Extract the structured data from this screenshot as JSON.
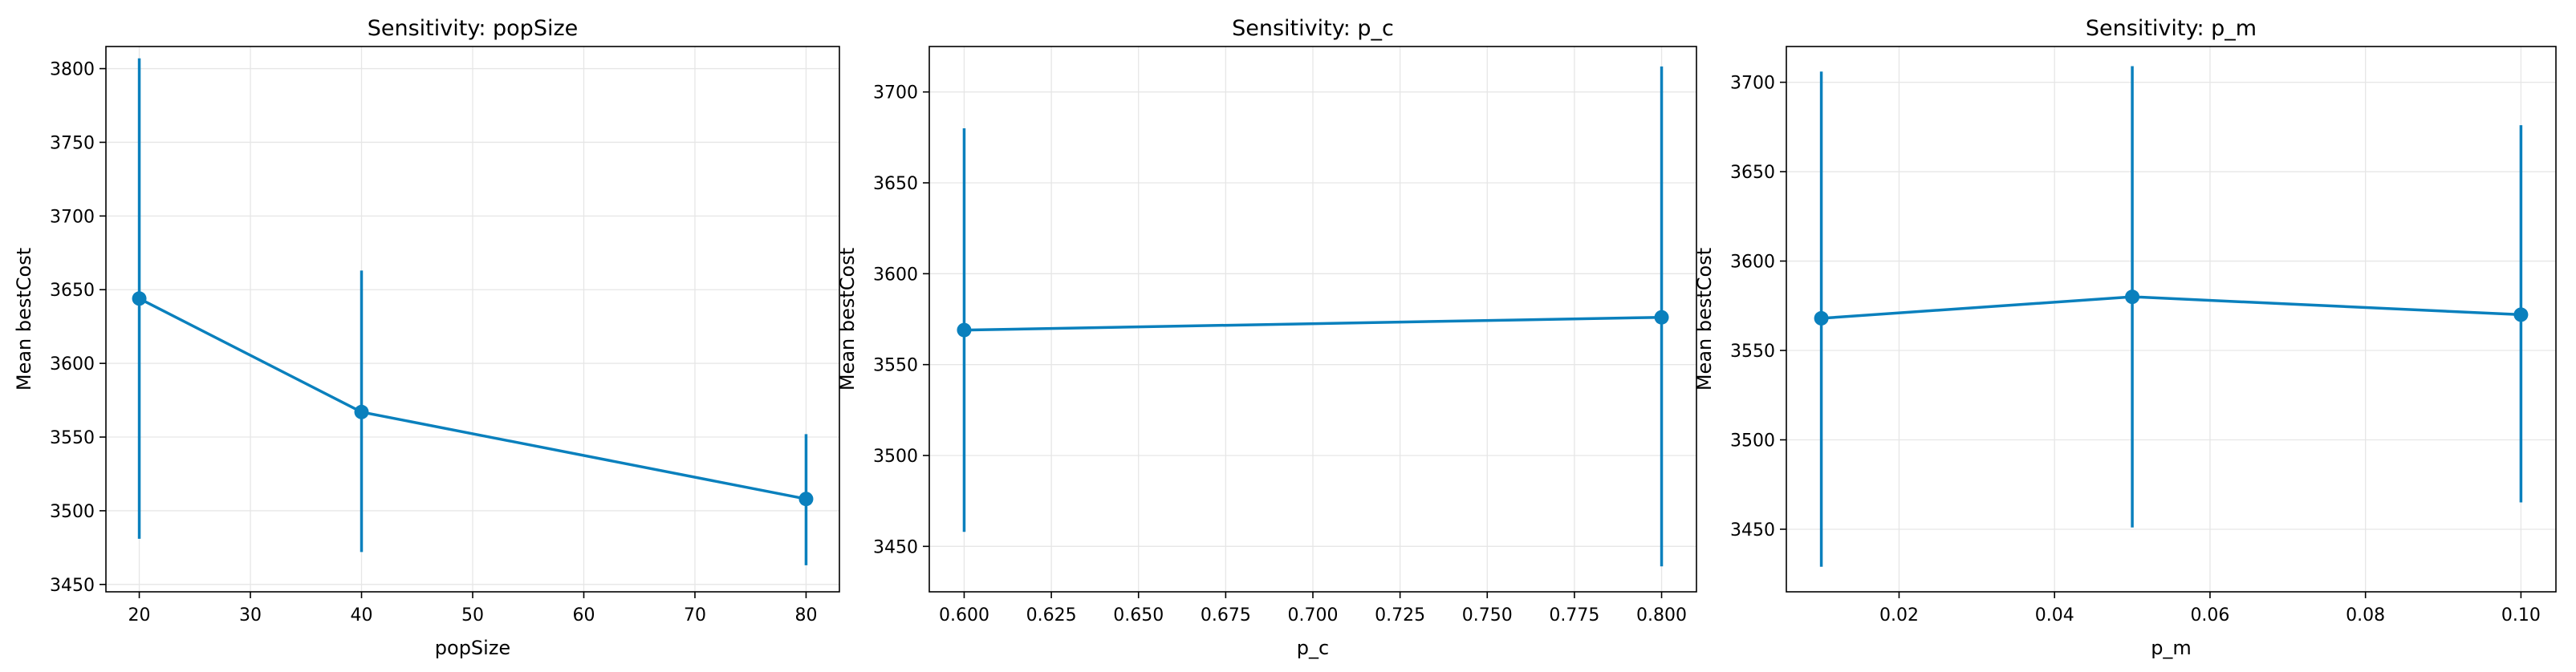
{
  "colors": {
    "series": "#0a80bd",
    "grid": "#e6e6e6"
  },
  "chart_data": [
    {
      "type": "line",
      "title": "Sensitivity: popSize",
      "xlabel": "popSize",
      "ylabel": "Mean bestCost",
      "xlim": [
        17,
        83
      ],
      "ylim": [
        3445,
        3815
      ],
      "xticks": [
        20,
        30,
        40,
        50,
        60,
        70,
        80
      ],
      "xtick_labels": [
        "20",
        "30",
        "40",
        "50",
        "60",
        "70",
        "80"
      ],
      "yticks": [
        3450,
        3500,
        3550,
        3600,
        3650,
        3700,
        3750,
        3800
      ],
      "ytick_labels": [
        "3450",
        "3500",
        "3550",
        "3600",
        "3650",
        "3700",
        "3750",
        "3800"
      ],
      "grid": true,
      "points": [
        {
          "x": 20,
          "y": 3644,
          "err_low": 3481,
          "err_high": 3807
        },
        {
          "x": 40,
          "y": 3567,
          "err_low": 3472,
          "err_high": 3663
        },
        {
          "x": 80,
          "y": 3508,
          "err_low": 3463,
          "err_high": 3552
        }
      ]
    },
    {
      "type": "line",
      "title": "Sensitivity: p_c",
      "xlabel": "p_c",
      "ylabel": "Mean bestCost",
      "xlim": [
        0.59,
        0.81
      ],
      "ylim": [
        3425,
        3725
      ],
      "xticks": [
        0.6,
        0.625,
        0.65,
        0.675,
        0.7,
        0.725,
        0.75,
        0.775,
        0.8
      ],
      "xtick_labels": [
        "0.600",
        "0.625",
        "0.650",
        "0.675",
        "0.700",
        "0.725",
        "0.750",
        "0.775",
        "0.800"
      ],
      "yticks": [
        3450,
        3500,
        3550,
        3600,
        3650,
        3700
      ],
      "ytick_labels": [
        "3450",
        "3500",
        "3550",
        "3600",
        "3650",
        "3700"
      ],
      "grid": true,
      "points": [
        {
          "x": 0.6,
          "y": 3569,
          "err_low": 3458,
          "err_high": 3680
        },
        {
          "x": 0.8,
          "y": 3576,
          "err_low": 3439,
          "err_high": 3714
        }
      ]
    },
    {
      "type": "line",
      "title": "Sensitivity: p_m",
      "xlabel": "p_m",
      "ylabel": "Mean bestCost",
      "xlim": [
        0.0055,
        0.1045
      ],
      "ylim": [
        3415,
        3720
      ],
      "xticks": [
        0.02,
        0.04,
        0.06,
        0.08,
        0.1
      ],
      "xtick_labels": [
        "0.02",
        "0.04",
        "0.06",
        "0.08",
        "0.10"
      ],
      "yticks": [
        3450,
        3500,
        3550,
        3600,
        3650,
        3700
      ],
      "ytick_labels": [
        "3450",
        "3500",
        "3550",
        "3600",
        "3650",
        "3700"
      ],
      "grid": true,
      "points": [
        {
          "x": 0.01,
          "y": 3568,
          "err_low": 3429,
          "err_high": 3706
        },
        {
          "x": 0.05,
          "y": 3580,
          "err_low": 3451,
          "err_high": 3709
        },
        {
          "x": 0.1,
          "y": 3570,
          "err_low": 3465,
          "err_high": 3676
        }
      ]
    }
  ]
}
